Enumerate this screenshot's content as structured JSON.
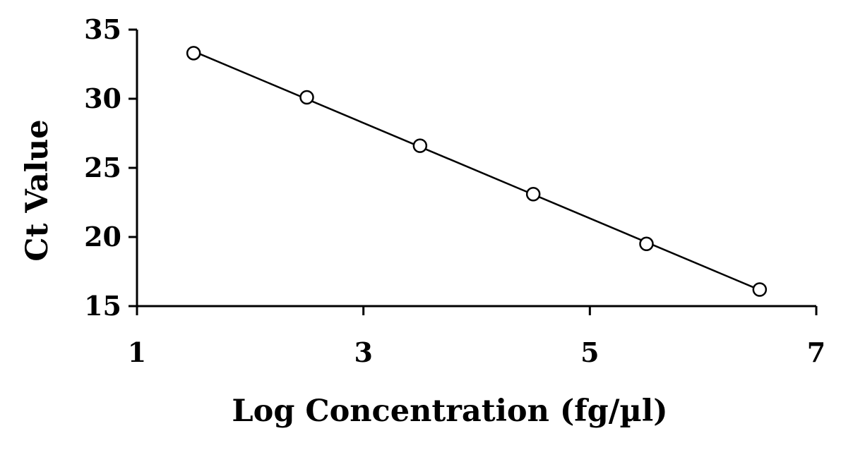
{
  "chart_data": {
    "type": "scatter",
    "title": "",
    "xlabel": "Log Concentration (fg/µl)",
    "ylabel": "Ct Value",
    "xlim": [
      1,
      7
    ],
    "ylim": [
      15,
      35
    ],
    "xticks": [
      "1",
      "3",
      "5",
      "7"
    ],
    "yticks": [
      "15",
      "20",
      "25",
      "30",
      "35"
    ],
    "grid": false,
    "legend": "none",
    "series": [
      {
        "x": [
          1.5,
          2.5,
          3.5,
          4.5,
          5.5,
          6.5
        ],
        "y": [
          33.3,
          30.1,
          26.6,
          23.1,
          19.5,
          16.2
        ],
        "marker": "open-circle",
        "trendline": "linear",
        "color": "#000000"
      }
    ]
  }
}
